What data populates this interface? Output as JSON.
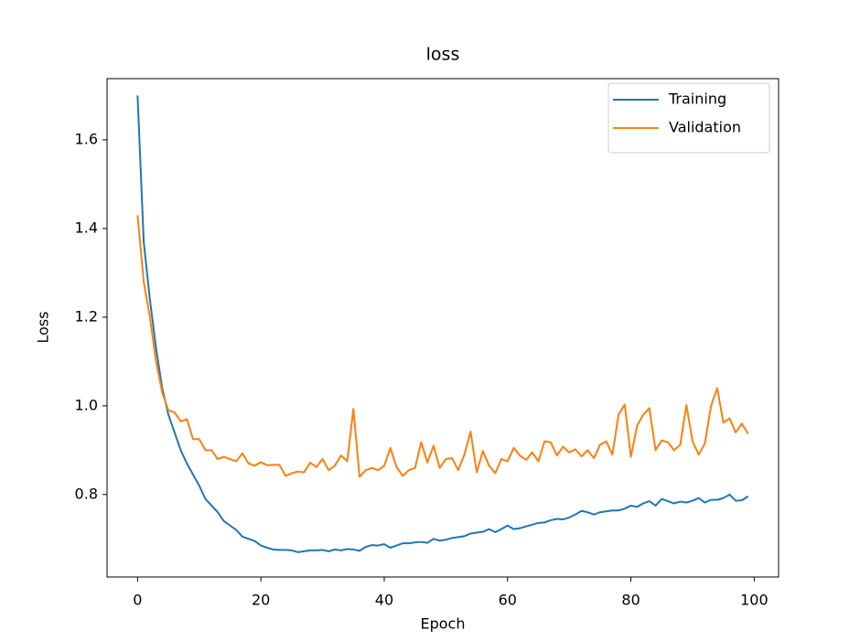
{
  "chart_data": {
    "type": "line",
    "title": "loss",
    "xlabel": "Epoch",
    "ylabel": "Loss",
    "x": [
      0,
      1,
      2,
      3,
      4,
      5,
      6,
      7,
      8,
      9,
      10,
      11,
      12,
      13,
      14,
      15,
      16,
      17,
      18,
      19,
      20,
      21,
      22,
      23,
      24,
      25,
      26,
      27,
      28,
      29,
      30,
      31,
      32,
      33,
      34,
      35,
      36,
      37,
      38,
      39,
      40,
      41,
      42,
      43,
      44,
      45,
      46,
      47,
      48,
      49,
      50,
      51,
      52,
      53,
      54,
      55,
      56,
      57,
      58,
      59,
      60,
      61,
      62,
      63,
      64,
      65,
      66,
      67,
      68,
      69,
      70,
      71,
      72,
      73,
      74,
      75,
      76,
      77,
      78,
      79,
      80,
      81,
      82,
      83,
      84,
      85,
      86,
      87,
      88,
      89,
      90,
      91,
      92,
      93,
      94,
      95,
      96,
      97,
      98,
      99
    ],
    "series": [
      {
        "name": "Training",
        "color": "#1f77b4",
        "values": [
          1.7,
          1.37,
          1.24,
          1.13,
          1.04,
          0.98,
          0.94,
          0.9,
          0.87,
          0.845,
          0.82,
          0.79,
          0.775,
          0.76,
          0.74,
          0.73,
          0.72,
          0.705,
          0.7,
          0.695,
          0.685,
          0.68,
          0.676,
          0.675,
          0.675,
          0.674,
          0.67,
          0.672,
          0.674,
          0.674,
          0.675,
          0.672,
          0.676,
          0.674,
          0.677,
          0.676,
          0.673,
          0.682,
          0.686,
          0.685,
          0.688,
          0.68,
          0.685,
          0.69,
          0.69,
          0.692,
          0.693,
          0.691,
          0.7,
          0.696,
          0.698,
          0.702,
          0.704,
          0.706,
          0.712,
          0.714,
          0.716,
          0.722,
          0.715,
          0.722,
          0.73,
          0.722,
          0.724,
          0.728,
          0.732,
          0.736,
          0.737,
          0.742,
          0.745,
          0.744,
          0.748,
          0.755,
          0.763,
          0.76,
          0.755,
          0.76,
          0.762,
          0.764,
          0.764,
          0.768,
          0.775,
          0.772,
          0.78,
          0.785,
          0.775,
          0.79,
          0.785,
          0.78,
          0.784,
          0.782,
          0.786,
          0.792,
          0.782,
          0.788,
          0.788,
          0.792,
          0.8,
          0.786,
          0.787,
          0.796
        ]
      },
      {
        "name": "Validation",
        "color": "#ff7f0e",
        "values": [
          1.43,
          1.28,
          1.2,
          1.1,
          1.03,
          0.99,
          0.985,
          0.965,
          0.97,
          0.925,
          0.925,
          0.9,
          0.9,
          0.88,
          0.885,
          0.88,
          0.875,
          0.893,
          0.87,
          0.865,
          0.873,
          0.866,
          0.867,
          0.867,
          0.842,
          0.848,
          0.852,
          0.85,
          0.872,
          0.862,
          0.88,
          0.855,
          0.865,
          0.888,
          0.875,
          0.993,
          0.84,
          0.855,
          0.86,
          0.855,
          0.865,
          0.905,
          0.862,
          0.842,
          0.855,
          0.86,
          0.918,
          0.872,
          0.91,
          0.86,
          0.88,
          0.882,
          0.855,
          0.89,
          0.942,
          0.85,
          0.898,
          0.865,
          0.848,
          0.88,
          0.875,
          0.905,
          0.888,
          0.878,
          0.895,
          0.875,
          0.92,
          0.918,
          0.888,
          0.908,
          0.895,
          0.902,
          0.886,
          0.9,
          0.882,
          0.912,
          0.92,
          0.89,
          0.98,
          1.003,
          0.885,
          0.955,
          0.98,
          0.995,
          0.9,
          0.922,
          0.918,
          0.9,
          0.912,
          1.002,
          0.92,
          0.89,
          0.915,
          1.0,
          1.04,
          0.962,
          0.972,
          0.94,
          0.96,
          0.937
        ]
      }
    ],
    "xlim": [
      -4.95,
      103.95
    ],
    "ylim": [
      0.614,
      1.738
    ],
    "xticks": [
      0,
      20,
      40,
      60,
      80,
      100
    ],
    "yticks": [
      0.8,
      {
        "value": 1,
        "label": "1.0"
      },
      1.2,
      1.4,
      1.6
    ],
    "grid": false,
    "legend": "upper right"
  }
}
